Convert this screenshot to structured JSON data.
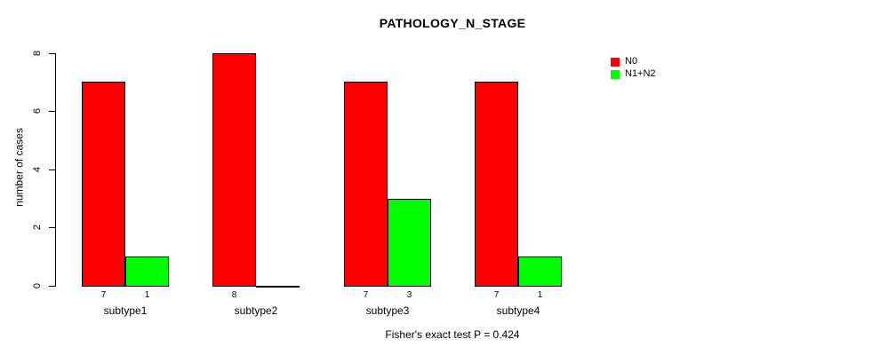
{
  "chart_data": {
    "type": "bar",
    "title": "PATHOLOGY_N_STAGE",
    "xlabel": "",
    "ylabel": "number of cases",
    "annotation": "Fisher's exact test P = 0.424",
    "categories": [
      "subtype1",
      "subtype2",
      "subtype3",
      "subtype4"
    ],
    "series": [
      {
        "name": "N0",
        "color": "#ff0000",
        "values": [
          7,
          8,
          7,
          7
        ]
      },
      {
        "name": "N1+N2",
        "color": "#00ff00",
        "values": [
          1,
          0,
          3,
          1
        ]
      }
    ],
    "bar_value_labels": [
      [
        "7",
        "1"
      ],
      [
        "8",
        ""
      ],
      [
        "7",
        "3"
      ],
      [
        "7",
        "1"
      ]
    ],
    "yticks": [
      0,
      2,
      4,
      6,
      8
    ],
    "ylim": [
      0,
      8
    ],
    "grid": false,
    "legend_position": "top-right",
    "bar_border_color": "#000000"
  }
}
